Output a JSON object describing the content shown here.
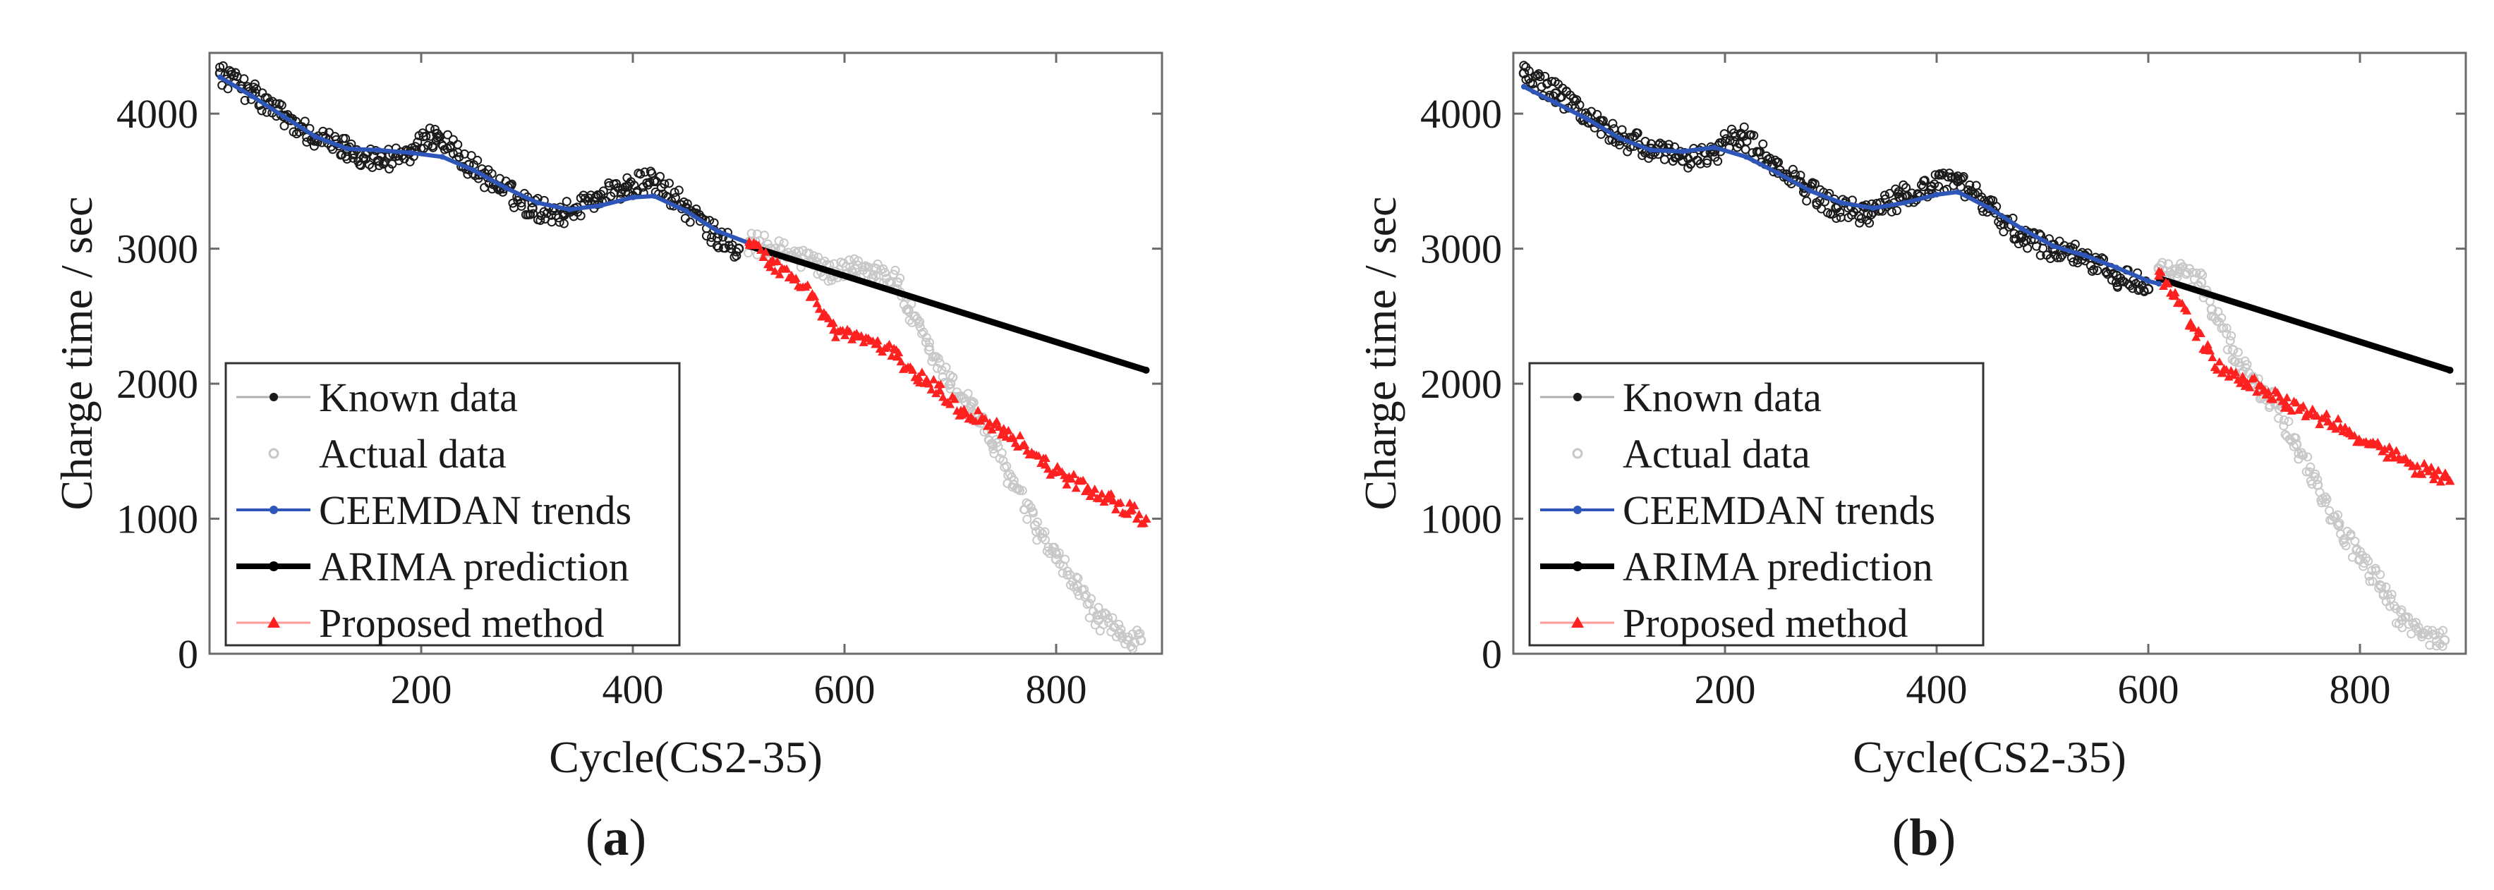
{
  "chart_data": [
    {
      "id": "a",
      "type": "scatter",
      "panel_label_open": "(",
      "panel_label_letter": "a",
      "panel_label_close": ")",
      "xlabel": "Cycle(CS2-35)",
      "ylabel": "Charge time / sec",
      "xlim": [
        0,
        900
      ],
      "ylim": [
        0,
        4450
      ],
      "xticks": [
        200,
        400,
        600,
        800
      ],
      "xtick_labels": [
        "200",
        "400",
        "600",
        "800"
      ],
      "yticks": [
        0,
        1000,
        2000,
        3000,
        4000
      ],
      "ytick_labels": [
        "0",
        "1000",
        "2000",
        "3000",
        "4000"
      ],
      "legend_position": "bottom-left",
      "series": [
        {
          "name": "Known data",
          "color": "#1a1a1a",
          "marker": "circle-open",
          "x": [
            10,
            40,
            70,
            100,
            130,
            160,
            190,
            215,
            245,
            275,
            305,
            335,
            365,
            395,
            420,
            450,
            480,
            500
          ],
          "y": [
            4300,
            4150,
            3980,
            3820,
            3740,
            3650,
            3720,
            3850,
            3620,
            3450,
            3300,
            3260,
            3380,
            3460,
            3500,
            3300,
            3080,
            3000
          ]
        },
        {
          "name": "Actual data",
          "color": "#c8c8c8",
          "marker": "circle-open",
          "x": [
            510,
            530,
            550,
            570,
            590,
            610,
            630,
            650,
            660,
            680,
            700,
            720,
            740,
            760,
            780,
            800,
            820,
            840,
            860,
            880
          ],
          "y": [
            3050,
            3000,
            2950,
            2900,
            2800,
            2850,
            2850,
            2750,
            2550,
            2250,
            2000,
            1850,
            1550,
            1250,
            950,
            700,
            500,
            250,
            150,
            100
          ]
        },
        {
          "name": "CEEMDAN trends",
          "color": "#2e56b8",
          "marker": "line",
          "x": [
            10,
            40,
            70,
            100,
            130,
            160,
            190,
            220,
            250,
            280,
            310,
            340,
            370,
            400,
            420,
            450,
            480,
            510
          ],
          "y": [
            4270,
            4130,
            3980,
            3830,
            3740,
            3730,
            3710,
            3680,
            3580,
            3450,
            3340,
            3290,
            3320,
            3380,
            3390,
            3280,
            3130,
            3040
          ]
        },
        {
          "name": "ARIMA prediction",
          "color": "#000000",
          "marker": "thick-line",
          "x": [
            510,
            885
          ],
          "y": [
            3020,
            2100
          ]
        },
        {
          "name": "Proposed method",
          "color": "#ff2020",
          "marker": "triangle",
          "x": [
            510,
            530,
            550,
            570,
            590,
            610,
            630,
            650,
            670,
            690,
            710,
            730,
            750,
            770,
            790,
            810,
            830,
            850,
            870,
            885
          ],
          "y": [
            3050,
            2900,
            2800,
            2650,
            2400,
            2350,
            2300,
            2200,
            2050,
            1950,
            1800,
            1750,
            1650,
            1550,
            1400,
            1300,
            1220,
            1150,
            1060,
            1000
          ]
        }
      ]
    },
    {
      "id": "b",
      "type": "scatter",
      "panel_label_open": "(",
      "panel_label_letter": "b",
      "panel_label_close": ")",
      "xlabel": "Cycle(CS2-35)",
      "ylabel": "Charge time / sec",
      "xlim": [
        0,
        900
      ],
      "ylim": [
        0,
        4450
      ],
      "xticks": [
        200,
        400,
        600,
        800
      ],
      "xtick_labels": [
        "200",
        "400",
        "600",
        "800"
      ],
      "yticks": [
        0,
        1000,
        2000,
        3000,
        4000
      ],
      "ytick_labels": [
        "0",
        "1000",
        "2000",
        "3000",
        "4000"
      ],
      "legend_position": "bottom-left",
      "series": [
        {
          "name": "Known data",
          "color": "#1a1a1a",
          "marker": "circle-open",
          "x": [
            10,
            40,
            70,
            100,
            130,
            160,
            190,
            215,
            245,
            275,
            305,
            335,
            365,
            395,
            420,
            450,
            480,
            510,
            540,
            570,
            600
          ],
          "y": [
            4300,
            4150,
            3980,
            3820,
            3740,
            3650,
            3720,
            3850,
            3620,
            3450,
            3300,
            3260,
            3380,
            3460,
            3500,
            3300,
            3080,
            3000,
            2950,
            2800,
            2700
          ]
        },
        {
          "name": "Actual data",
          "color": "#c8c8c8",
          "marker": "circle-open",
          "x": [
            610,
            630,
            650,
            660,
            680,
            700,
            720,
            740,
            760,
            780,
            800,
            820,
            840,
            860,
            880
          ],
          "y": [
            2850,
            2850,
            2750,
            2550,
            2250,
            2000,
            1850,
            1550,
            1250,
            950,
            700,
            500,
            250,
            150,
            100
          ]
        },
        {
          "name": "CEEMDAN trends",
          "color": "#2e56b8",
          "marker": "line",
          "x": [
            10,
            40,
            70,
            100,
            130,
            160,
            190,
            220,
            250,
            280,
            310,
            340,
            370,
            400,
            420,
            450,
            480,
            510,
            540,
            570,
            600,
            610
          ],
          "y": [
            4200,
            4080,
            3960,
            3820,
            3730,
            3720,
            3750,
            3680,
            3560,
            3430,
            3340,
            3300,
            3340,
            3400,
            3420,
            3300,
            3150,
            3020,
            2950,
            2860,
            2760,
            2740
          ]
        },
        {
          "name": "ARIMA prediction",
          "color": "#000000",
          "marker": "thick-line",
          "x": [
            610,
            885
          ],
          "y": [
            2780,
            2100
          ]
        },
        {
          "name": "Proposed method",
          "color": "#ff2020",
          "marker": "triangle",
          "x": [
            610,
            625,
            640,
            655,
            670,
            690,
            710,
            730,
            750,
            770,
            790,
            810,
            830,
            850,
            870,
            885
          ],
          "y": [
            2800,
            2650,
            2450,
            2250,
            2080,
            2030,
            1950,
            1850,
            1780,
            1720,
            1650,
            1560,
            1480,
            1390,
            1330,
            1280
          ]
        }
      ]
    }
  ]
}
